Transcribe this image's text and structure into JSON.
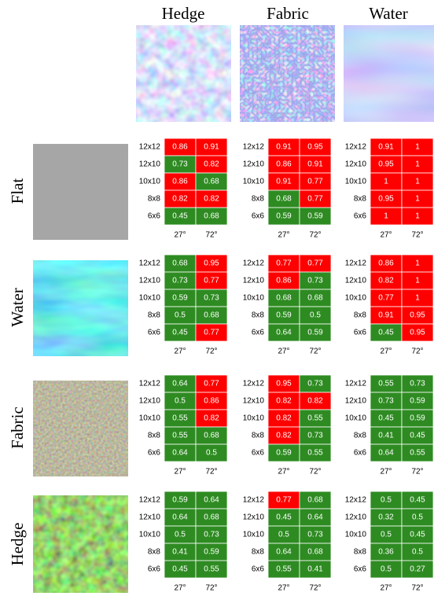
{
  "header": {
    "columns": [
      "Hedge",
      "Fabric",
      "Water"
    ]
  },
  "grid_rows": [
    "12x12",
    "12x10",
    "10x10",
    "8x8",
    "6x6"
  ],
  "grid_cols": [
    "27°",
    "72°"
  ],
  "colors": {
    "r": "#ff0000",
    "g": "#2e8b22"
  },
  "rows": [
    {
      "label": "Flat",
      "grids": [
        {
          "values": [
            [
              0.86,
              0.91
            ],
            [
              0.73,
              0.82
            ],
            [
              0.86,
              0.68
            ],
            [
              0.82,
              0.82
            ],
            [
              0.45,
              0.68
            ]
          ],
          "fill": [
            [
              "r",
              "r"
            ],
            [
              "g",
              "r"
            ],
            [
              "r",
              "g"
            ],
            [
              "r",
              "r"
            ],
            [
              "g",
              "g"
            ]
          ]
        },
        {
          "values": [
            [
              0.91,
              0.95
            ],
            [
              0.86,
              0.91
            ],
            [
              0.91,
              0.77
            ],
            [
              0.68,
              0.77
            ],
            [
              0.59,
              0.59
            ]
          ],
          "fill": [
            [
              "r",
              "r"
            ],
            [
              "r",
              "r"
            ],
            [
              "r",
              "r"
            ],
            [
              "g",
              "r"
            ],
            [
              "g",
              "g"
            ]
          ]
        },
        {
          "values": [
            [
              0.91,
              1
            ],
            [
              0.95,
              1
            ],
            [
              1,
              1
            ],
            [
              0.95,
              1
            ],
            [
              1,
              1
            ]
          ],
          "fill": [
            [
              "r",
              "r"
            ],
            [
              "r",
              "r"
            ],
            [
              "r",
              "r"
            ],
            [
              "r",
              "r"
            ],
            [
              "r",
              "r"
            ]
          ]
        }
      ]
    },
    {
      "label": "Water",
      "grids": [
        {
          "values": [
            [
              0.68,
              0.95
            ],
            [
              0.73,
              0.77
            ],
            [
              0.59,
              0.73
            ],
            [
              0.5,
              0.68
            ],
            [
              0.45,
              0.77
            ]
          ],
          "fill": [
            [
              "g",
              "r"
            ],
            [
              "g",
              "r"
            ],
            [
              "g",
              "g"
            ],
            [
              "g",
              "g"
            ],
            [
              "g",
              "r"
            ]
          ]
        },
        {
          "values": [
            [
              0.77,
              0.77
            ],
            [
              0.86,
              0.73
            ],
            [
              0.68,
              0.68
            ],
            [
              0.59,
              0.5
            ],
            [
              0.64,
              0.59
            ]
          ],
          "fill": [
            [
              "r",
              "r"
            ],
            [
              "r",
              "g"
            ],
            [
              "g",
              "g"
            ],
            [
              "g",
              "g"
            ],
            [
              "g",
              "g"
            ]
          ]
        },
        {
          "values": [
            [
              0.86,
              1
            ],
            [
              0.82,
              1
            ],
            [
              0.77,
              1
            ],
            [
              0.91,
              0.95
            ],
            [
              0.45,
              0.95
            ]
          ],
          "fill": [
            [
              "r",
              "r"
            ],
            [
              "r",
              "r"
            ],
            [
              "r",
              "r"
            ],
            [
              "r",
              "r"
            ],
            [
              "g",
              "r"
            ]
          ]
        }
      ]
    },
    {
      "label": "Fabric",
      "grids": [
        {
          "values": [
            [
              0.64,
              0.77
            ],
            [
              0.5,
              0.86
            ],
            [
              0.55,
              0.82
            ],
            [
              0.55,
              0.68
            ],
            [
              0.64,
              0.5
            ]
          ],
          "fill": [
            [
              "g",
              "r"
            ],
            [
              "g",
              "r"
            ],
            [
              "g",
              "r"
            ],
            [
              "g",
              "g"
            ],
            [
              "g",
              "g"
            ]
          ]
        },
        {
          "values": [
            [
              0.95,
              0.73
            ],
            [
              0.82,
              0.82
            ],
            [
              0.82,
              0.55
            ],
            [
              0.82,
              0.73
            ],
            [
              0.59,
              0.55
            ]
          ],
          "fill": [
            [
              "r",
              "g"
            ],
            [
              "r",
              "r"
            ],
            [
              "r",
              "g"
            ],
            [
              "r",
              "g"
            ],
            [
              "g",
              "g"
            ]
          ]
        },
        {
          "values": [
            [
              0.55,
              0.73
            ],
            [
              0.73,
              0.59
            ],
            [
              0.45,
              0.59
            ],
            [
              0.41,
              0.45
            ],
            [
              0.64,
              0.55
            ]
          ],
          "fill": [
            [
              "g",
              "g"
            ],
            [
              "g",
              "g"
            ],
            [
              "g",
              "g"
            ],
            [
              "g",
              "g"
            ],
            [
              "g",
              "g"
            ]
          ]
        }
      ]
    },
    {
      "label": "Hedge",
      "grids": [
        {
          "values": [
            [
              0.59,
              0.64
            ],
            [
              0.64,
              0.68
            ],
            [
              0.5,
              0.73
            ],
            [
              0.41,
              0.59
            ],
            [
              0.45,
              0.55
            ]
          ],
          "fill": [
            [
              "g",
              "g"
            ],
            [
              "g",
              "g"
            ],
            [
              "g",
              "g"
            ],
            [
              "g",
              "g"
            ],
            [
              "g",
              "g"
            ]
          ]
        },
        {
          "values": [
            [
              0.77,
              0.68
            ],
            [
              0.45,
              0.64
            ],
            [
              0.5,
              0.73
            ],
            [
              0.64,
              0.68
            ],
            [
              0.55,
              0.41
            ]
          ],
          "fill": [
            [
              "r",
              "g"
            ],
            [
              "g",
              "g"
            ],
            [
              "g",
              "g"
            ],
            [
              "g",
              "g"
            ],
            [
              "g",
              "g"
            ]
          ]
        },
        {
          "values": [
            [
              0.5,
              0.45
            ],
            [
              0.32,
              0.5
            ],
            [
              0.5,
              0.45
            ],
            [
              0.36,
              0.5
            ],
            [
              0.5,
              0.27
            ]
          ],
          "fill": [
            [
              "g",
              "g"
            ],
            [
              "g",
              "g"
            ],
            [
              "g",
              "g"
            ],
            [
              "g",
              "g"
            ],
            [
              "g",
              "g"
            ]
          ]
        }
      ]
    }
  ]
}
